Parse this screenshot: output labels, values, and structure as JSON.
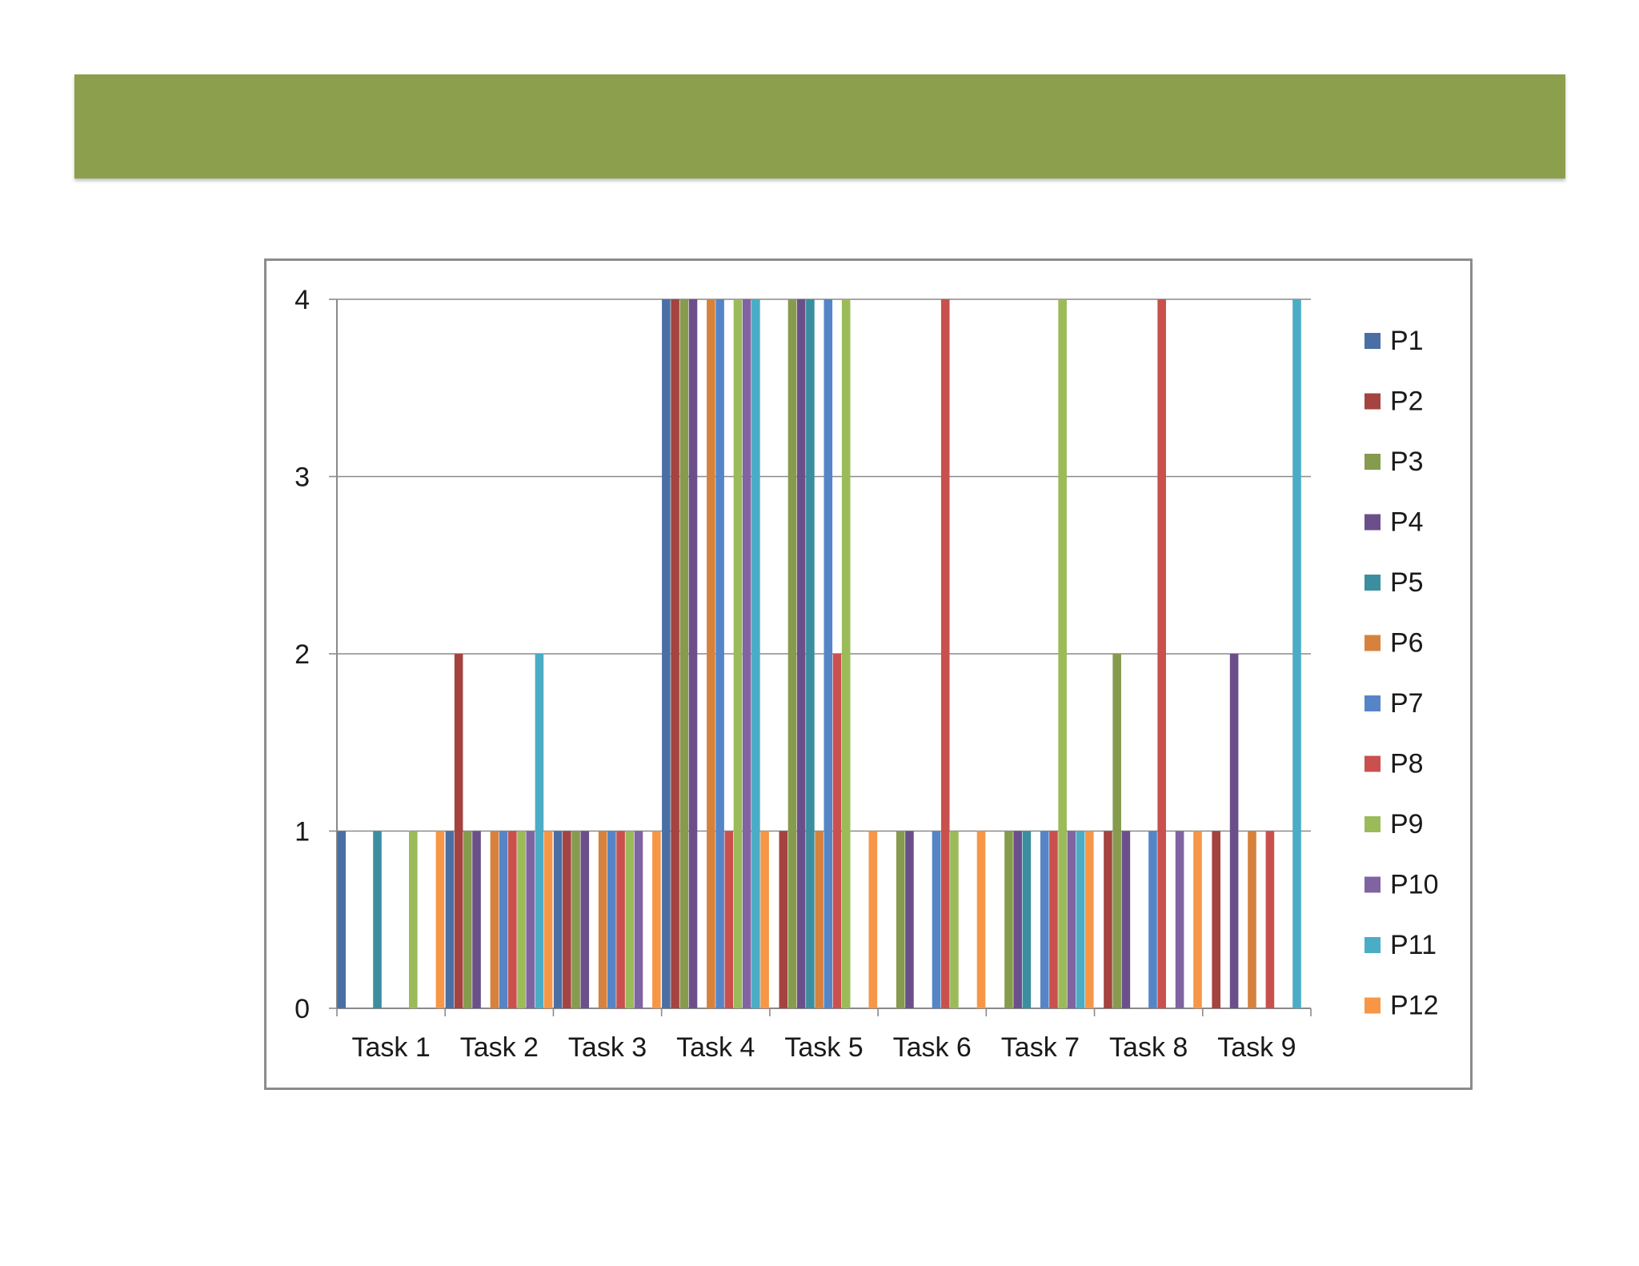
{
  "slide": {
    "banner_color": "#8c9f4c"
  },
  "chart_data": {
    "type": "bar",
    "ylim": [
      0,
      4
    ],
    "yticks": [
      "0",
      "1",
      "2",
      "3",
      "4"
    ],
    "grid": true,
    "legend_position": "right",
    "categories": [
      "Task 1",
      "Task 2",
      "Task 3",
      "Task 4",
      "Task 5",
      "Task 6",
      "Task 7",
      "Task 8",
      "Task 9"
    ],
    "series": [
      {
        "name": "P1",
        "color": "#4a6fa5",
        "values": [
          1,
          1,
          1,
          4,
          0,
          0,
          0,
          0,
          0
        ]
      },
      {
        "name": "P2",
        "color": "#a44340",
        "values": [
          0,
          2,
          1,
          4,
          1,
          0,
          0,
          1,
          1
        ]
      },
      {
        "name": "P3",
        "color": "#869b4e",
        "values": [
          0,
          1,
          1,
          4,
          4,
          1,
          1,
          2,
          0
        ]
      },
      {
        "name": "P4",
        "color": "#6b4f8a",
        "values": [
          0,
          1,
          1,
          4,
          4,
          1,
          1,
          1,
          2
        ]
      },
      {
        "name": "P5",
        "color": "#3a8ea0",
        "values": [
          1,
          0,
          0,
          0,
          4,
          0,
          1,
          0,
          0
        ]
      },
      {
        "name": "P6",
        "color": "#d6823c",
        "values": [
          0,
          1,
          1,
          4,
          1,
          0,
          0,
          0,
          1
        ]
      },
      {
        "name": "P7",
        "color": "#5585c6",
        "values": [
          0,
          1,
          1,
          4,
          4,
          1,
          1,
          1,
          0
        ]
      },
      {
        "name": "P8",
        "color": "#c9504d",
        "values": [
          0,
          1,
          1,
          1,
          2,
          4,
          1,
          4,
          1
        ]
      },
      {
        "name": "P9",
        "color": "#9bbb59",
        "values": [
          1,
          1,
          1,
          4,
          4,
          1,
          4,
          0,
          0
        ]
      },
      {
        "name": "P10",
        "color": "#8064a2",
        "values": [
          0,
          1,
          1,
          4,
          0,
          0,
          1,
          1,
          0
        ]
      },
      {
        "name": "P11",
        "color": "#4bacc6",
        "values": [
          0,
          2,
          0,
          4,
          0,
          0,
          1,
          0,
          4
        ]
      },
      {
        "name": "P12",
        "color": "#f79646",
        "values": [
          1,
          1,
          1,
          1,
          1,
          1,
          1,
          1,
          0
        ]
      }
    ]
  }
}
